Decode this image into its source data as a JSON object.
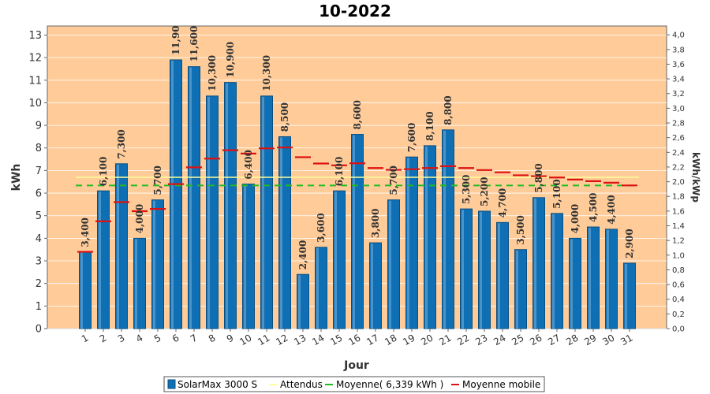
{
  "chart_data": {
    "type": "bar",
    "title": "10-2022",
    "xlabel": "Jour",
    "ylabel": "kWh",
    "ylabel_right": "kWh/kWp",
    "ylim": [
      0,
      13.4
    ],
    "ylim_right": [
      0,
      4.12
    ],
    "yticks": [
      "0",
      "1",
      "2",
      "3",
      "4",
      "5",
      "6",
      "7",
      "8",
      "9",
      "10",
      "11",
      "12",
      "13"
    ],
    "yticks_right": [
      "0,0",
      "0,2",
      "0,4",
      "0,6",
      "0,8",
      "1,0",
      "1,2",
      "1,4",
      "1,6",
      "1,8",
      "2,0",
      "2,2",
      "2,4",
      "2,6",
      "2,8",
      "3,0",
      "3,2",
      "3,4",
      "3,6",
      "3,8",
      "4,0"
    ],
    "categories": [
      "1",
      "2",
      "3",
      "4",
      "5",
      "6",
      "7",
      "8",
      "9",
      "10",
      "11",
      "12",
      "13",
      "14",
      "15",
      "16",
      "17",
      "18",
      "19",
      "20",
      "21",
      "22",
      "23",
      "24",
      "25",
      "26",
      "27",
      "28",
      "29",
      "30",
      "31"
    ],
    "series": [
      {
        "name": "SolarMax 3000 S",
        "values": [
          3.4,
          6.1,
          7.3,
          4.0,
          5.7,
          11.9,
          11.6,
          10.3,
          10.9,
          6.4,
          10.3,
          8.5,
          2.4,
          3.6,
          6.1,
          8.6,
          3.8,
          5.7,
          7.6,
          8.1,
          8.8,
          5.3,
          5.2,
          4.7,
          3.5,
          5.8,
          5.1,
          4.0,
          4.5,
          4.4,
          2.9
        ],
        "labels": [
          "3,400",
          "6,100",
          "7,300",
          "4,000",
          "5,700",
          "11,90",
          "11,600",
          "10,300",
          "10,900",
          "6,400",
          "10,300",
          "8,500",
          "2,400",
          "3,600",
          "6,100",
          "8,600",
          "3,800",
          "5,700",
          "7,600",
          "8,100",
          "8,800",
          "5,300",
          "5,200",
          "4,700",
          "3,500",
          "5,800",
          "5,100",
          "4,000",
          "4,500",
          "4,400",
          "2,900"
        ]
      },
      {
        "name": "Attendus",
        "values": [
          6.7,
          6.7,
          6.7,
          6.7,
          6.7,
          6.7,
          6.7,
          6.7,
          6.7,
          6.7,
          6.7,
          6.7,
          6.7,
          6.7,
          6.7,
          6.7,
          6.7,
          6.7,
          6.7,
          6.7,
          6.7,
          6.7,
          6.7,
          6.7,
          6.7,
          6.7,
          6.7,
          6.7,
          6.7,
          6.7,
          6.7
        ]
      },
      {
        "name": "Moyenne( 6,339 kWh )",
        "values": [
          6.339,
          6.339,
          6.339,
          6.339,
          6.339,
          6.339,
          6.339,
          6.339,
          6.339,
          6.339,
          6.339,
          6.339,
          6.339,
          6.339,
          6.339,
          6.339,
          6.339,
          6.339,
          6.339,
          6.339,
          6.339,
          6.339,
          6.339,
          6.339,
          6.339,
          6.339,
          6.339,
          6.339,
          6.339,
          6.339,
          6.339
        ]
      },
      {
        "name": "Moyenne mobile",
        "values": [
          3.4,
          4.75,
          5.6,
          5.2,
          5.3,
          6.4,
          7.14,
          7.53,
          7.9,
          7.75,
          7.98,
          8.02,
          7.59,
          7.31,
          7.23,
          7.32,
          7.11,
          7.03,
          7.06,
          7.11,
          7.19,
          7.11,
          7.02,
          6.92,
          6.79,
          6.75,
          6.69,
          6.6,
          6.53,
          6.46,
          6.34
        ]
      }
    ],
    "colors": {
      "plot_bg": "#ffcc99",
      "bar": "#0f6fb5",
      "bar_edge": "#0a4f80",
      "expected": "#ffff99",
      "average": "#22bb22",
      "moving": "#dd1111"
    },
    "grid": true,
    "legend_position": "bottom"
  }
}
